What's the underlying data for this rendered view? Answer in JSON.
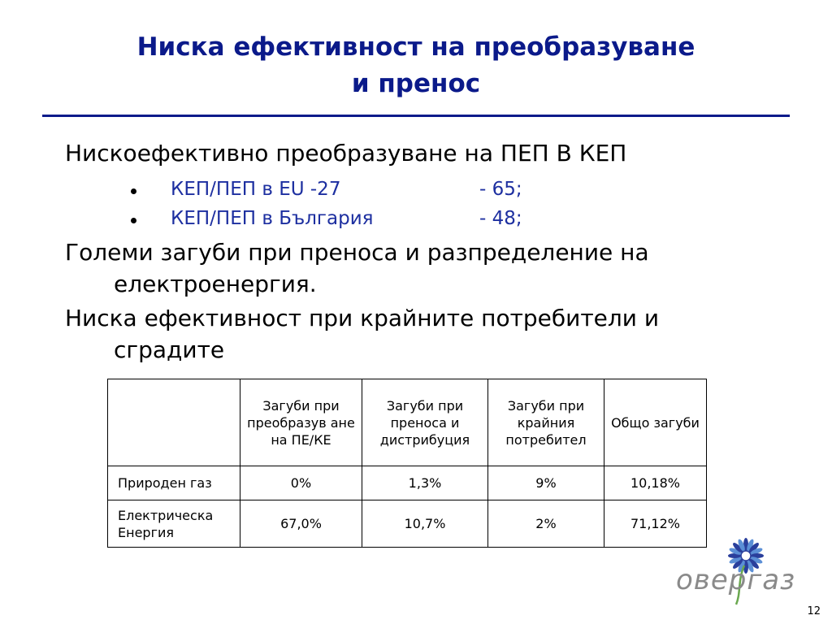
{
  "slide": {
    "title_line1": "Ниска ефективност на преобразуване",
    "title_line2": "и пренос",
    "points": {
      "p1": "Нискоефективно преобразуване на ПЕП В КЕП",
      "bullets": [
        {
          "label": "КЕП/ПЕП в EU -27",
          "value": "- 65;"
        },
        {
          "label": "КЕП/ПЕП в България",
          "value": "- 48;"
        }
      ],
      "p2_line1": "Големи загуби при преноса и разпределение на",
      "p2_line2": "електроенергия.",
      "p3_line1": "Ниска ефективност при крайните потребители и",
      "p3_line2": "сградите"
    },
    "table": {
      "headers": [
        "",
        "Загуби при преобразув ане на ПЕ/КЕ",
        "Загуби при преноса  и дистрибуция",
        "Загуби при крайния потребител",
        "Общо загуби"
      ],
      "rows": [
        [
          "Природен газ",
          "0%",
          "1,3%",
          "9%",
          "10,18%"
        ],
        [
          "Електрическа Енергия",
          "67,0%",
          "10,7%",
          "2%",
          "71,12%"
        ]
      ]
    },
    "logo_text": "овергаз",
    "page_number": "12"
  }
}
